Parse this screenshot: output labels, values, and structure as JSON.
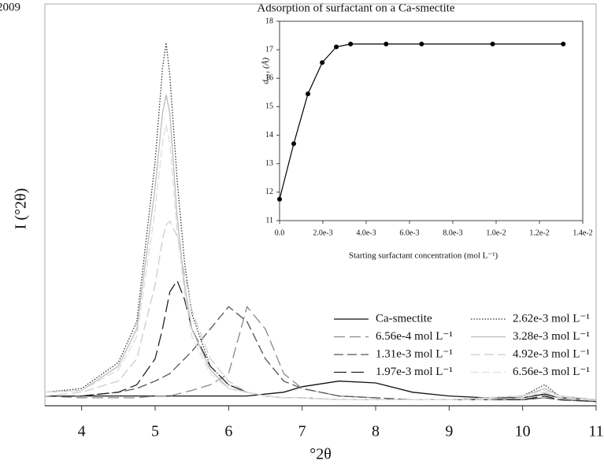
{
  "header": {
    "year": "2009",
    "title": "Adsorption of surfactant on a Ca-smectite"
  },
  "chart_data": [
    {
      "type": "line",
      "x_label": "°2θ",
      "y_label": "I (°2θ)",
      "x": [
        3.5,
        4,
        4.5,
        4.75,
        5,
        5.1,
        5.15,
        5.2,
        5.3,
        5.4,
        5.5,
        5.75,
        6,
        6.25,
        6.5,
        6.75,
        7,
        7.5,
        8,
        8.5,
        9,
        9.5,
        10,
        10.3,
        10.5,
        11
      ],
      "xlim": [
        3.5,
        11
      ],
      "xticks": [
        4,
        5,
        6,
        7,
        8,
        9,
        10,
        11
      ],
      "ylim": [
        0,
        100
      ],
      "legend": "lower right",
      "series": [
        {
          "name": "Ca-smectite",
          "color": "#111111",
          "dash": "none",
          "values": [
            2,
            2,
            2,
            2,
            2,
            2,
            2,
            2,
            2,
            2,
            2,
            2,
            2,
            2,
            2.5,
            3,
            4.5,
            6,
            5.5,
            3,
            2,
            1.5,
            1.5,
            2.5,
            1.5,
            1
          ]
        },
        {
          "name": "6.56e-4 mol L⁻¹",
          "color": "#888888",
          "dash": "14,6",
          "values": [
            2,
            1.5,
            1.5,
            1.5,
            2,
            2,
            2,
            2,
            2.5,
            3,
            3.5,
            5,
            8,
            26,
            20,
            8,
            4,
            2,
            1.5,
            1,
            1,
            1,
            1,
            1.5,
            1,
            0.5
          ]
        },
        {
          "name": "1.31e-3 mol L⁻¹",
          "color": "#555555",
          "dash": "12,5",
          "values": [
            2,
            2,
            3,
            4,
            6,
            7,
            7.5,
            8,
            10,
            12,
            14,
            20,
            26,
            22,
            12,
            6,
            4,
            2,
            1.5,
            1,
            1,
            1,
            1,
            1.5,
            1,
            0.5
          ]
        },
        {
          "name": "1.97e-3 mol L⁻¹",
          "color": "#222222",
          "dash": "16,6",
          "values": [
            2,
            2,
            3,
            5,
            12,
            20,
            25,
            30,
            33,
            28,
            20,
            10,
            5,
            3,
            2,
            1.5,
            1.5,
            1,
            1,
            1,
            1,
            1,
            1,
            2,
            1,
            0.5
          ]
        },
        {
          "name": "2.62e-3 mol L⁻¹",
          "color": "#333333",
          "dash": "1.5,2",
          "values": [
            3,
            4,
            11,
            22,
            65,
            90,
            97,
            88,
            60,
            38,
            24,
            10,
            5,
            3,
            2,
            1.5,
            1.5,
            1,
            1,
            1,
            1,
            1.5,
            2,
            5,
            2,
            1
          ]
        },
        {
          "name": "3.28e-3 mol L⁻¹",
          "color": "#bbbbbb",
          "dash": "none",
          "values": [
            3,
            3.5,
            10,
            20,
            58,
            78,
            83,
            78,
            50,
            32,
            20,
            9,
            4,
            3,
            2,
            1.5,
            1.5,
            1,
            1,
            1,
            1,
            1.5,
            2,
            4,
            2,
            1
          ]
        },
        {
          "name": "4.92e-3 mol L⁻¹",
          "color": "#cccccc",
          "dash": "12,5",
          "values": [
            2,
            3,
            6,
            12,
            32,
            44,
            48,
            49,
            45,
            35,
            25,
            12,
            6,
            3,
            2,
            1.5,
            1.5,
            1,
            1,
            1,
            1,
            1,
            1.5,
            3,
            1.5,
            1
          ]
        },
        {
          "name": "6.56e-3 mol L⁻¹",
          "color": "#dddddd",
          "dash": "10,4",
          "values": [
            3,
            3.5,
            9,
            18,
            52,
            70,
            75,
            70,
            46,
            30,
            18,
            8,
            4,
            3,
            2,
            1.5,
            1.5,
            1,
            1,
            1,
            1,
            1.5,
            2,
            3.5,
            2,
            1
          ]
        }
      ]
    },
    {
      "type": "line",
      "x_label": "Starting surfactant concentration (mol L⁻¹)",
      "y_label": "d₀₀₁ (Å)",
      "x": [
        0,
        0.000656,
        0.00131,
        0.00197,
        0.00262,
        0.00328,
        0.00492,
        0.00656,
        0.00984,
        0.0131
      ],
      "values": [
        11.75,
        13.7,
        15.45,
        16.55,
        17.1,
        17.2,
        17.2,
        17.2,
        17.2,
        17.2
      ],
      "color": "#000000",
      "markers": true,
      "xlim": [
        0,
        0.014
      ],
      "ylim": [
        11,
        18
      ],
      "xticks": [
        {
          "value": 0,
          "label": "0.0"
        },
        {
          "value": 0.002,
          "label": "2.0e-3"
        },
        {
          "value": 0.004,
          "label": "4.0e-3"
        },
        {
          "value": 0.006,
          "label": "6.0e-3"
        },
        {
          "value": 0.008,
          "label": "8.0e-3"
        },
        {
          "value": 0.01,
          "label": "1.0e-2"
        },
        {
          "value": 0.012,
          "label": "1.2e-2"
        },
        {
          "value": 0.014,
          "label": "1.4e-2"
        }
      ],
      "yticks": [
        11,
        12,
        13,
        14,
        15,
        16,
        17,
        18
      ]
    }
  ]
}
